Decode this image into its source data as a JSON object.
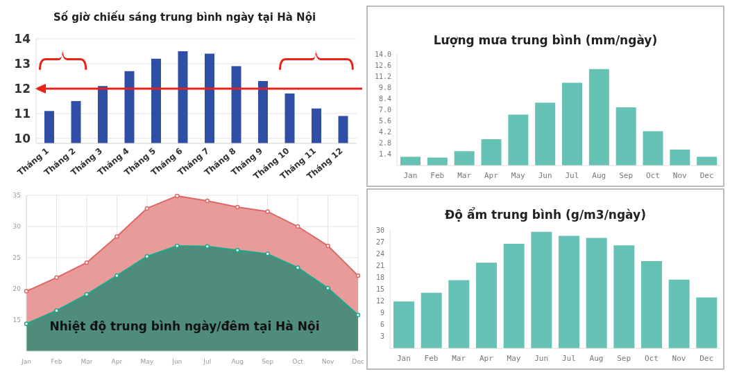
{
  "chart_data": [
    {
      "type": "bar",
      "title": "Số giờ chiếu sáng trung bình ngày tại Hà Nội",
      "categories": [
        "Tháng 1",
        "Tháng 2",
        "Tháng 3",
        "Tháng 4",
        "Tháng 5",
        "Tháng 6",
        "Tháng 7",
        "Tháng 8",
        "Tháng 9",
        "Tháng 10",
        "Tháng 11",
        "Tháng 12"
      ],
      "values": [
        11.1,
        11.5,
        12.1,
        12.7,
        13.2,
        13.5,
        13.4,
        12.9,
        12.3,
        11.8,
        11.2,
        10.9
      ],
      "color": "#2f4ea6",
      "ylim": [
        9.8,
        14
      ],
      "yticks": [
        10,
        11,
        12,
        13,
        14
      ],
      "grid": "y",
      "ref_lines": [
        {
          "axis": "y",
          "value": 12,
          "color": "#e8231c"
        }
      ]
    },
    {
      "type": "bar",
      "title": "Lượng mưa trung bình (mm/ngày)",
      "categories": [
        "Jan",
        "Feb",
        "Mar",
        "Apr",
        "May",
        "Jun",
        "Jul",
        "Aug",
        "Sep",
        "Oct",
        "Nov",
        "Dec"
      ],
      "values": [
        1.1,
        1.0,
        1.8,
        3.3,
        6.4,
        7.9,
        10.4,
        12.1,
        7.3,
        4.3,
        2.0,
        1.1
      ],
      "color": "#66c2b4",
      "ylim": [
        0,
        14
      ],
      "yticks": [
        1.4,
        2.8,
        4.2,
        5.6,
        {
          "value": 7,
          "label": "7.0"
        },
        8.4,
        9.8,
        11.2,
        12.6,
        {
          "value": 14,
          "label": "14.0"
        }
      ]
    },
    {
      "type": "area",
      "title": "Nhiệt độ trung bình ngày/đêm tại Hà Nội",
      "categories": [
        "Jan",
        "Feb",
        "Mar",
        "Apr",
        "May",
        "Jun",
        "Jul",
        "Aug",
        "Sep",
        "Oct",
        "Nov",
        "Dec"
      ],
      "series": [
        {
          "color": "#e06666",
          "values": [
            19.6,
            21.8,
            24.2,
            28.4,
            32.9,
            34.9,
            34.1,
            33.1,
            32.4,
            30.0,
            26.9,
            22.1
          ]
        },
        {
          "color": "#1aa88c",
          "values": [
            14.4,
            16.5,
            19.1,
            22.1,
            25.2,
            26.9,
            26.8,
            26.2,
            25.6,
            23.4,
            20.1,
            15.8
          ]
        }
      ],
      "ylim": [
        10,
        35
      ],
      "yticks": [
        15,
        20,
        25,
        30,
        35
      ],
      "grid": true,
      "marker": "circle"
    },
    {
      "type": "bar",
      "title": "Độ ẩm trung bình (g/m3/ngày)",
      "categories": [
        "Jan",
        "Feb",
        "Mar",
        "Apr",
        "May",
        "Jun",
        "Jul",
        "Aug",
        "Sep",
        "Oct",
        "Nov",
        "Dec"
      ],
      "values": [
        11.9,
        14.1,
        17.3,
        21.7,
        26.5,
        29.5,
        28.5,
        28.0,
        26.1,
        22.1,
        17.4,
        12.9
      ],
      "color": "#66c2b4",
      "ylim": [
        0,
        30
      ],
      "yticks": [
        3,
        6,
        9,
        12,
        15,
        18,
        21,
        24,
        27,
        30
      ]
    }
  ]
}
